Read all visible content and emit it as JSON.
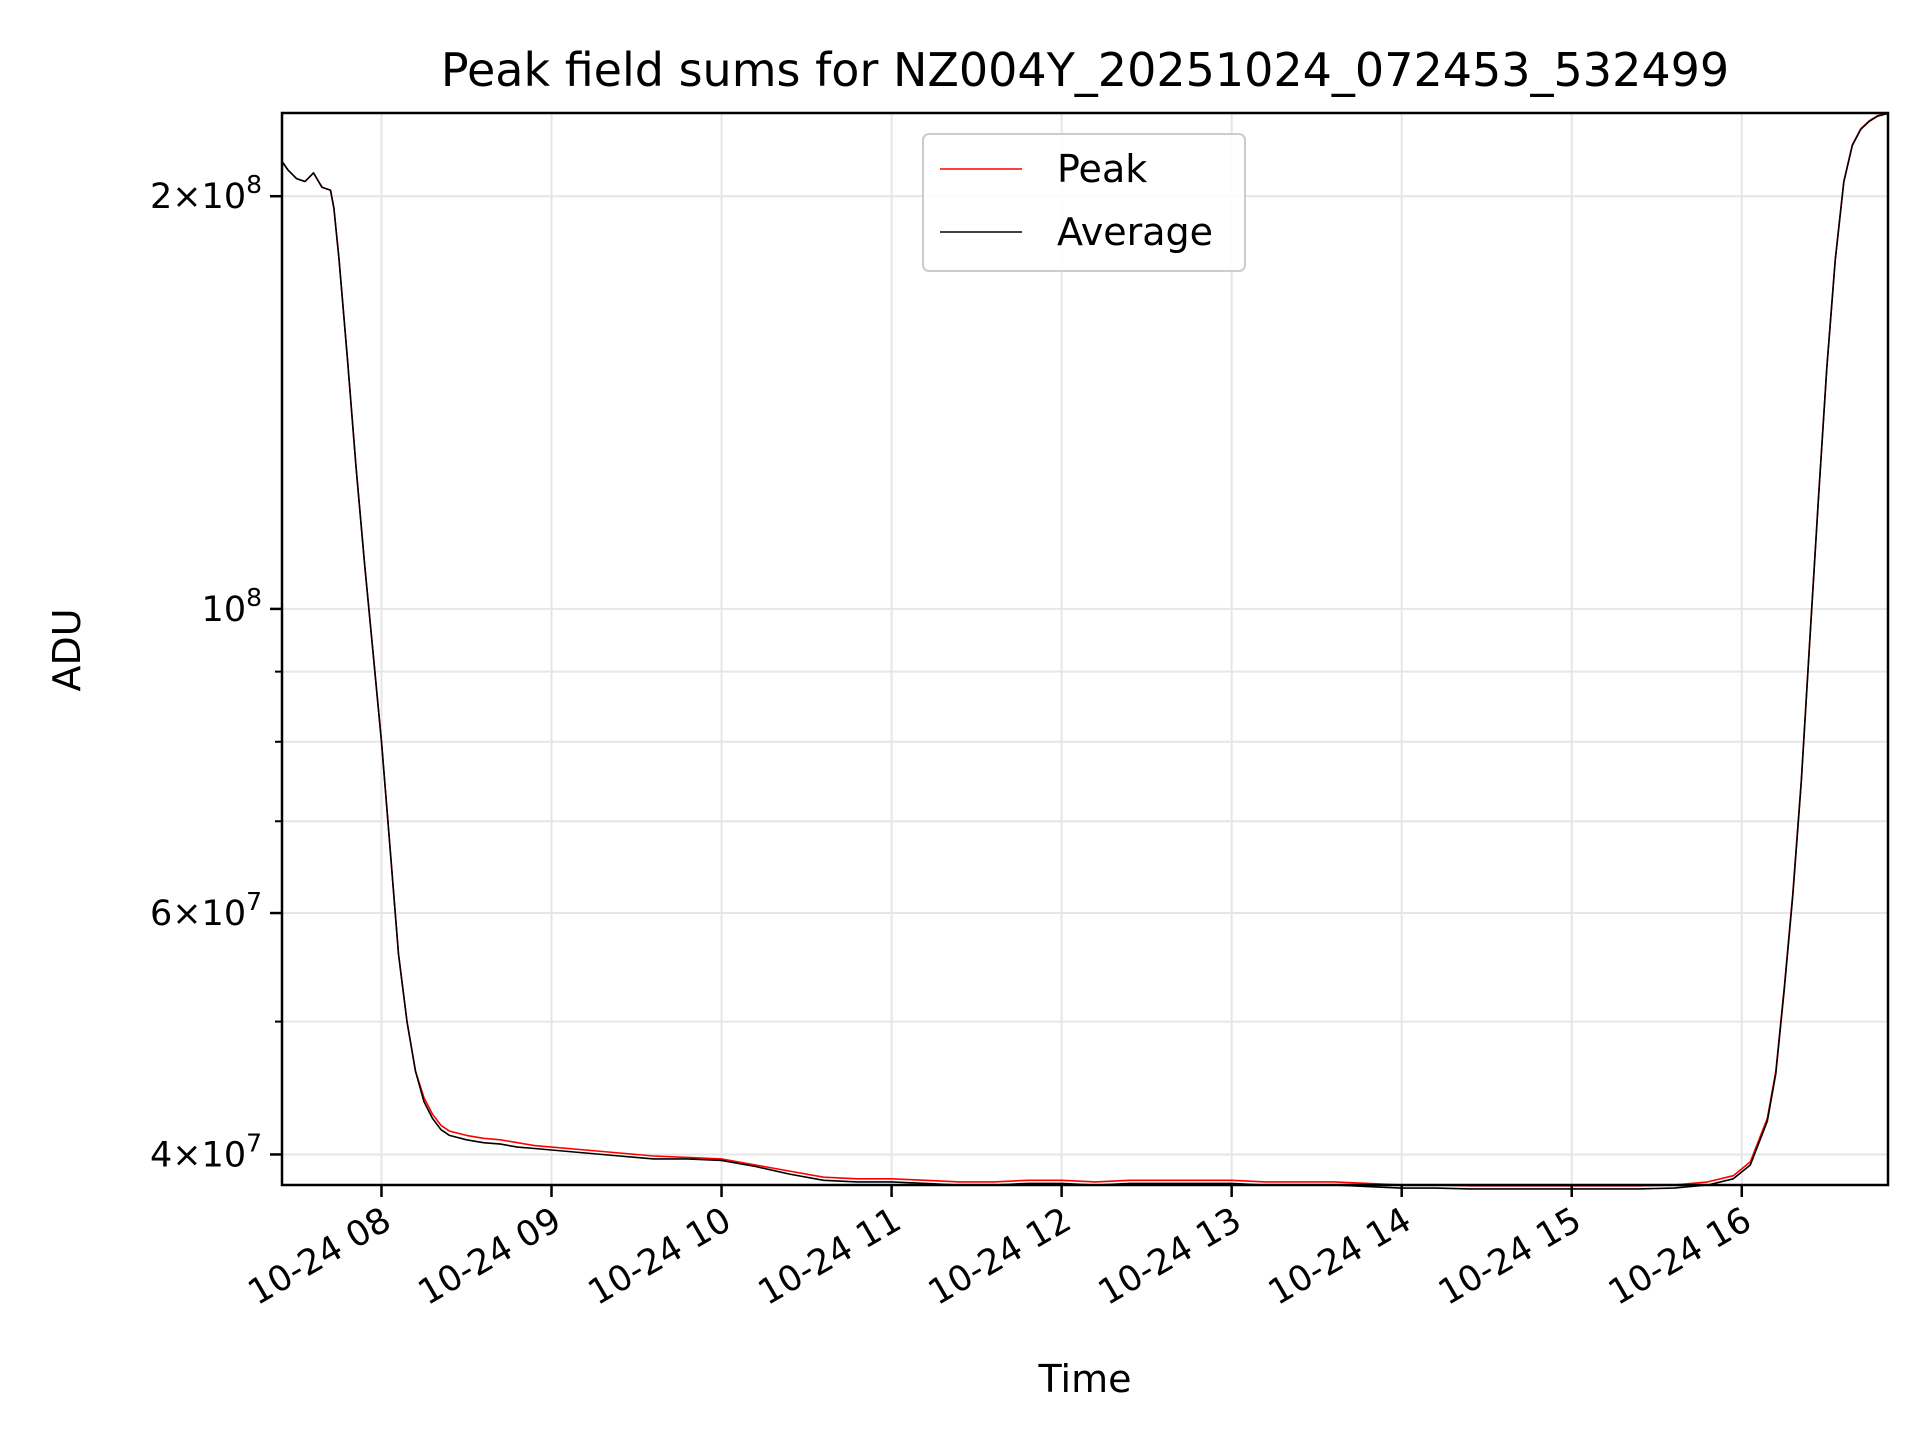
{
  "chart_data": {
    "type": "line",
    "title": "Peak field sums for NZ004Y_20251024_072453_532499",
    "xlabel": "Time",
    "ylabel": "ADU",
    "yscale": "log",
    "ylim": [
      38000000,
      230000000
    ],
    "xlim_hours": [
      7.415,
      16.86
    ],
    "grid": true,
    "legend_position": "upper-center",
    "x_ticks": [
      {
        "hour": 8,
        "label": "10-24 08"
      },
      {
        "hour": 9,
        "label": "10-24 09"
      },
      {
        "hour": 10,
        "label": "10-24 10"
      },
      {
        "hour": 11,
        "label": "10-24 11"
      },
      {
        "hour": 12,
        "label": "10-24 12"
      },
      {
        "hour": 13,
        "label": "10-24 13"
      },
      {
        "hour": 14,
        "label": "10-24 14"
      },
      {
        "hour": 15,
        "label": "10-24 15"
      },
      {
        "hour": 16,
        "label": "10-24 16"
      }
    ],
    "y_ticks": [
      {
        "value": 40000000,
        "mant": "4",
        "exp": "7"
      },
      {
        "value": 60000000,
        "mant": "6",
        "exp": "7"
      },
      {
        "value": 100000000,
        "mant": "",
        "exp": "8"
      },
      {
        "value": 200000000,
        "mant": "2",
        "exp": "8"
      }
    ],
    "y_minor_ticks": [
      50000000,
      70000000,
      80000000,
      90000000
    ],
    "series": [
      {
        "name": "Peak",
        "color": "#ff0000",
        "x_hours": [
          7.415,
          7.45,
          7.5,
          7.55,
          7.6,
          7.65,
          7.7,
          7.72,
          7.75,
          7.8,
          7.85,
          7.9,
          7.95,
          8.0,
          8.05,
          8.1,
          8.15,
          8.2,
          8.25,
          8.3,
          8.35,
          8.4,
          8.5,
          8.6,
          8.7,
          8.8,
          8.9,
          9.0,
          9.2,
          9.4,
          9.6,
          9.8,
          10.0,
          10.2,
          10.4,
          10.6,
          10.8,
          11.0,
          11.2,
          11.4,
          11.6,
          11.8,
          12.0,
          12.2,
          12.4,
          12.6,
          12.8,
          13.0,
          13.2,
          13.4,
          13.6,
          13.8,
          14.0,
          14.2,
          14.4,
          14.6,
          14.8,
          15.0,
          15.2,
          15.4,
          15.6,
          15.8,
          15.95,
          16.05,
          16.15,
          16.2,
          16.25,
          16.3,
          16.35,
          16.4,
          16.45,
          16.5,
          16.55,
          16.6,
          16.65,
          16.7,
          16.75,
          16.8,
          16.86
        ],
        "values": [
          212000000,
          209000000,
          206000000,
          205000000,
          208000000,
          203000000,
          202000000,
          196000000,
          180000000,
          152000000,
          127000000,
          108000000,
          93000000,
          80000000,
          67000000,
          56000000,
          50000000,
          46000000,
          44000000,
          42800000,
          42000000,
          41600000,
          41300000,
          41100000,
          41000000,
          40800000,
          40600000,
          40500000,
          40300000,
          40100000,
          39900000,
          39800000,
          39700000,
          39300000,
          38900000,
          38500000,
          38400000,
          38400000,
          38300000,
          38200000,
          38200000,
          38300000,
          38300000,
          38200000,
          38300000,
          38300000,
          38300000,
          38300000,
          38200000,
          38200000,
          38200000,
          38100000,
          38000000,
          38000000,
          37950000,
          37950000,
          37950000,
          37950000,
          37950000,
          37950000,
          38000000,
          38200000,
          38600000,
          39500000,
          42500000,
          46000000,
          53000000,
          62000000,
          75000000,
          95000000,
          120000000,
          150000000,
          180000000,
          205000000,
          218000000,
          224000000,
          227000000,
          229000000,
          230000000
        ]
      },
      {
        "name": "Average",
        "color": "#000000",
        "x_hours": [
          7.415,
          7.45,
          7.5,
          7.55,
          7.6,
          7.65,
          7.7,
          7.72,
          7.75,
          7.8,
          7.85,
          7.9,
          7.95,
          8.0,
          8.05,
          8.1,
          8.15,
          8.2,
          8.25,
          8.3,
          8.35,
          8.4,
          8.5,
          8.6,
          8.7,
          8.8,
          8.9,
          9.0,
          9.2,
          9.4,
          9.6,
          9.8,
          10.0,
          10.2,
          10.4,
          10.6,
          10.8,
          11.0,
          11.2,
          11.4,
          11.6,
          11.8,
          12.0,
          12.2,
          12.4,
          12.6,
          12.8,
          13.0,
          13.2,
          13.4,
          13.6,
          13.8,
          14.0,
          14.2,
          14.4,
          14.6,
          14.8,
          15.0,
          15.2,
          15.4,
          15.6,
          15.8,
          15.95,
          16.05,
          16.15,
          16.2,
          16.25,
          16.3,
          16.35,
          16.4,
          16.45,
          16.5,
          16.55,
          16.6,
          16.65,
          16.7,
          16.75,
          16.8,
          16.86
        ],
        "values": [
          212000000,
          209000000,
          206000000,
          205000000,
          208000000,
          203000000,
          202000000,
          196000000,
          180000000,
          152000000,
          127000000,
          108000000,
          93000000,
          80000000,
          67000000,
          56000000,
          50000000,
          46000000,
          43700000,
          42500000,
          41700000,
          41300000,
          41000000,
          40800000,
          40700000,
          40500000,
          40400000,
          40300000,
          40100000,
          39900000,
          39700000,
          39700000,
          39600000,
          39200000,
          38700000,
          38300000,
          38200000,
          38200000,
          38100000,
          38000000,
          38000000,
          38100000,
          38100000,
          38000000,
          38100000,
          38100000,
          38100000,
          38100000,
          38000000,
          38000000,
          38000000,
          37900000,
          37800000,
          37800000,
          37750000,
          37750000,
          37750000,
          37750000,
          37750000,
          37750000,
          37800000,
          38000000,
          38400000,
          39300000,
          42300000,
          45800000,
          52800000,
          61800000,
          74800000,
          94800000,
          119800000,
          149800000,
          179800000,
          204800000,
          217800000,
          223800000,
          226800000,
          228800000,
          229800000
        ]
      }
    ]
  }
}
